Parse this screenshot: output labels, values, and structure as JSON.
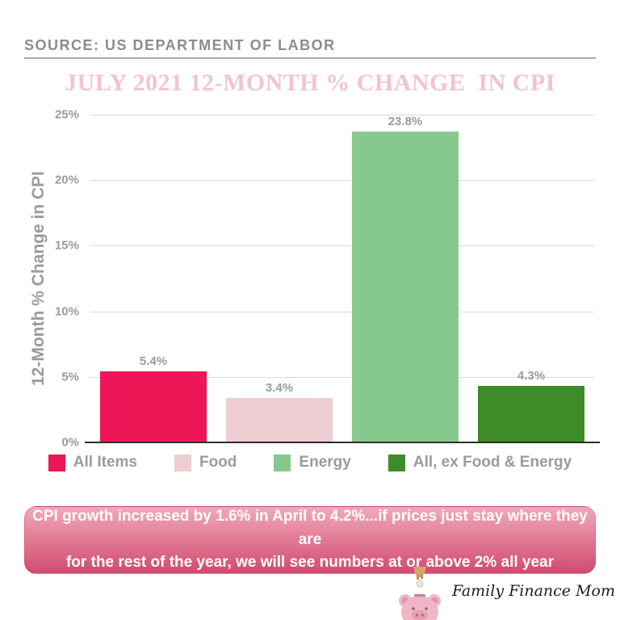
{
  "source": {
    "label": "SOURCE: US DEPARTMENT OF LABOR"
  },
  "chart_data": {
    "type": "bar",
    "title": "JULY 2021 12-MONTH % CHANGE  IN CPI",
    "title_color": "#F2C3CE",
    "categories": [
      "All Items",
      "Food",
      "Energy",
      "All, ex Food & Energy"
    ],
    "values": [
      5.4,
      3.4,
      23.8,
      4.3
    ],
    "value_labels": [
      "5.4%",
      "3.4%",
      "23.8%",
      "4.3%"
    ],
    "colors": [
      "#EE1656",
      "#EECDD3",
      "#87C98D",
      "#3E8C28"
    ],
    "xlabel": "",
    "ylabel": "12-Month % Change in CPI",
    "ylim": [
      0,
      25
    ],
    "yticks": [
      0,
      5,
      10,
      15,
      20,
      25
    ],
    "ytick_labels": [
      "0%",
      "5%",
      "10%",
      "15%",
      "20%",
      "25%"
    ],
    "grid": true,
    "legend_position": "bottom"
  },
  "banner": {
    "line1": "CPI growth increased by 1.6% in April to 4.2%...if prices just stay where they are",
    "line2": "for the rest of the year, we will see numbers at or above 2% all year",
    "gradient_top": "#F2A9BA",
    "gradient_bottom": "#D04B6F"
  },
  "logo": {
    "brand": "Family Finance Mom"
  }
}
